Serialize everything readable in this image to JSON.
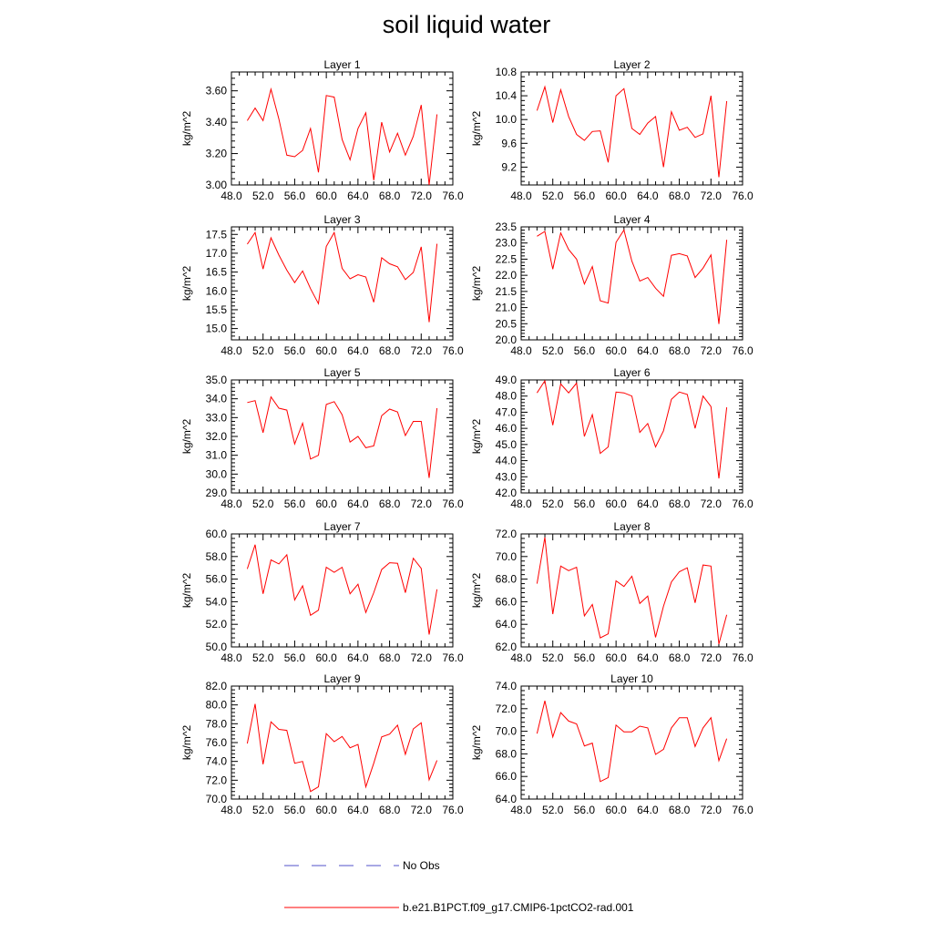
{
  "title": "soil liquid water",
  "legend": [
    {
      "label": "No Obs",
      "color": "#5050c8",
      "style": "dashed"
    },
    {
      "label": "b.e21.B1PCT.f09_g17.CMIP6-1pctCO2-rad.001",
      "color": "#ff0000",
      "style": "solid"
    }
  ],
  "chart_data": [
    {
      "type": "line",
      "title": "Layer 1",
      "ylabel": "kg/m^2",
      "xlim": [
        48,
        76
      ],
      "ylim": [
        3.0,
        3.72
      ],
      "xticks": [
        "48.0",
        "52.0",
        "56.0",
        "60.0",
        "64.0",
        "68.0",
        "72.0",
        "76.0"
      ],
      "yticks": [
        {
          "v": 3.0,
          "label": "3.00"
        },
        {
          "v": 3.2,
          "label": "3.20"
        },
        {
          "v": 3.4,
          "label": "3.40"
        },
        {
          "v": 3.6,
          "label": "3.60"
        }
      ],
      "x": [
        50,
        51,
        52,
        53,
        54,
        55,
        56,
        57,
        58,
        59,
        60,
        61,
        62,
        63,
        64,
        65,
        66,
        67,
        68,
        69,
        70,
        71,
        72,
        73,
        74
      ],
      "series": [
        {
          "values": [
            3.41,
            3.49,
            3.41,
            3.61,
            3.42,
            3.19,
            3.18,
            3.22,
            3.36,
            3.08,
            3.57,
            3.56,
            3.29,
            3.16,
            3.36,
            3.46,
            3.03,
            3.4,
            3.21,
            3.33,
            3.19,
            3.31,
            3.51,
            3.0,
            3.45
          ]
        }
      ]
    },
    {
      "type": "line",
      "title": "Layer 2",
      "ylabel": "kg/m^2",
      "xlim": [
        48,
        76
      ],
      "ylim": [
        8.9,
        10.8
      ],
      "xticks": [
        "48.0",
        "52.0",
        "56.0",
        "60.0",
        "64.0",
        "68.0",
        "72.0",
        "76.0"
      ],
      "yticks": [
        {
          "v": 9.2,
          "label": "9.2"
        },
        {
          "v": 9.6,
          "label": "9.6"
        },
        {
          "v": 10.0,
          "label": "10.0"
        },
        {
          "v": 10.4,
          "label": "10.4"
        },
        {
          "v": 10.8,
          "label": "10.8"
        }
      ],
      "x": [
        50,
        51,
        52,
        53,
        54,
        55,
        56,
        57,
        58,
        59,
        60,
        61,
        62,
        63,
        64,
        65,
        66,
        67,
        68,
        69,
        70,
        71,
        72,
        73,
        74
      ],
      "series": [
        {
          "values": [
            10.15,
            10.55,
            9.95,
            10.5,
            10.05,
            9.75,
            9.65,
            9.8,
            9.81,
            9.28,
            10.4,
            10.52,
            9.85,
            9.75,
            9.94,
            10.05,
            9.2,
            10.13,
            9.82,
            9.87,
            9.7,
            9.76,
            10.4,
            9.03,
            10.31
          ]
        }
      ]
    },
    {
      "type": "line",
      "title": "Layer 3",
      "ylabel": "kg/m^2",
      "xlim": [
        48,
        76
      ],
      "ylim": [
        14.7,
        17.7
      ],
      "xticks": [
        "48.0",
        "52.0",
        "56.0",
        "60.0",
        "64.0",
        "68.0",
        "72.0",
        "76.0"
      ],
      "yticks": [
        {
          "v": 15.0,
          "label": "15.0"
        },
        {
          "v": 15.5,
          "label": "15.5"
        },
        {
          "v": 16.0,
          "label": "16.0"
        },
        {
          "v": 16.5,
          "label": "16.5"
        },
        {
          "v": 17.0,
          "label": "17.0"
        },
        {
          "v": 17.5,
          "label": "17.5"
        }
      ],
      "x": [
        50,
        51,
        52,
        53,
        54,
        55,
        56,
        57,
        58,
        59,
        60,
        61,
        62,
        63,
        64,
        65,
        66,
        67,
        68,
        69,
        70,
        71,
        72,
        73,
        74
      ],
      "series": [
        {
          "values": [
            17.24,
            17.55,
            16.58,
            17.41,
            16.95,
            16.55,
            16.22,
            16.53,
            16.06,
            15.66,
            17.18,
            17.55,
            16.6,
            16.32,
            16.43,
            16.37,
            15.7,
            16.88,
            16.72,
            16.64,
            16.3,
            16.49,
            17.17,
            15.17,
            17.25
          ]
        }
      ]
    },
    {
      "type": "line",
      "title": "Layer 4",
      "ylabel": "kg/m^2",
      "xlim": [
        48,
        76
      ],
      "ylim": [
        20.0,
        23.5
      ],
      "xticks": [
        "48.0",
        "52.0",
        "56.0",
        "60.0",
        "64.0",
        "68.0",
        "72.0",
        "76.0"
      ],
      "yticks": [
        {
          "v": 20.0,
          "label": "20.0"
        },
        {
          "v": 20.5,
          "label": "20.5"
        },
        {
          "v": 21.0,
          "label": "21.0"
        },
        {
          "v": 21.5,
          "label": "21.5"
        },
        {
          "v": 22.0,
          "label": "22.0"
        },
        {
          "v": 22.5,
          "label": "22.5"
        },
        {
          "v": 23.0,
          "label": "23.0"
        },
        {
          "v": 23.5,
          "label": "23.5"
        }
      ],
      "x": [
        50,
        51,
        52,
        53,
        54,
        55,
        56,
        57,
        58,
        59,
        60,
        61,
        62,
        63,
        64,
        65,
        66,
        67,
        68,
        69,
        70,
        71,
        72,
        73,
        74
      ],
      "series": [
        {
          "values": [
            23.21,
            23.36,
            22.19,
            23.31,
            22.8,
            22.5,
            21.73,
            22.27,
            21.21,
            21.14,
            23.02,
            23.4,
            22.44,
            21.82,
            21.93,
            21.6,
            21.35,
            22.62,
            22.67,
            22.6,
            21.93,
            22.22,
            22.63,
            20.49,
            23.1
          ]
        }
      ]
    },
    {
      "type": "line",
      "title": "Layer 5",
      "ylabel": "kg/m^2",
      "xlim": [
        48,
        76
      ],
      "ylim": [
        29.0,
        35.0
      ],
      "xticks": [
        "48.0",
        "52.0",
        "56.0",
        "60.0",
        "64.0",
        "68.0",
        "72.0",
        "76.0"
      ],
      "yticks": [
        {
          "v": 29.0,
          "label": "29.0"
        },
        {
          "v": 30.0,
          "label": "30.0"
        },
        {
          "v": 31.0,
          "label": "31.0"
        },
        {
          "v": 32.0,
          "label": "32.0"
        },
        {
          "v": 33.0,
          "label": "33.0"
        },
        {
          "v": 34.0,
          "label": "34.0"
        },
        {
          "v": 35.0,
          "label": "35.0"
        }
      ],
      "x": [
        50,
        51,
        52,
        53,
        54,
        55,
        56,
        57,
        58,
        59,
        60,
        61,
        62,
        63,
        64,
        65,
        66,
        67,
        68,
        69,
        70,
        71,
        72,
        73,
        74
      ],
      "series": [
        {
          "values": [
            33.8,
            33.9,
            32.2,
            34.1,
            33.5,
            33.4,
            31.6,
            32.7,
            30.8,
            31.0,
            33.7,
            33.85,
            33.15,
            31.7,
            32.0,
            31.4,
            31.5,
            33.1,
            33.45,
            33.3,
            32.05,
            32.8,
            32.8,
            29.8,
            33.5
          ]
        }
      ]
    },
    {
      "type": "line",
      "title": "Layer 6",
      "ylabel": "kg/m^2",
      "xlim": [
        48,
        76
      ],
      "ylim": [
        42.0,
        49.0
      ],
      "xticks": [
        "48.0",
        "52.0",
        "56.0",
        "60.0",
        "64.0",
        "68.0",
        "72.0",
        "76.0"
      ],
      "yticks": [
        {
          "v": 42.0,
          "label": "42.0"
        },
        {
          "v": 43.0,
          "label": "43.0"
        },
        {
          "v": 44.0,
          "label": "44.0"
        },
        {
          "v": 45.0,
          "label": "45.0"
        },
        {
          "v": 46.0,
          "label": "46.0"
        },
        {
          "v": 47.0,
          "label": "47.0"
        },
        {
          "v": 48.0,
          "label": "48.0"
        },
        {
          "v": 49.0,
          "label": "49.0"
        }
      ],
      "x": [
        50,
        51,
        52,
        53,
        54,
        55,
        56,
        57,
        58,
        59,
        60,
        61,
        62,
        63,
        64,
        65,
        66,
        67,
        68,
        69,
        70,
        71,
        72,
        73,
        74
      ],
      "series": [
        {
          "values": [
            48.2,
            48.95,
            46.2,
            48.75,
            48.2,
            48.8,
            45.5,
            46.85,
            44.45,
            44.85,
            48.25,
            48.2,
            48.0,
            45.75,
            46.3,
            44.85,
            45.85,
            47.8,
            48.25,
            48.1,
            46.0,
            48.0,
            47.35,
            42.9,
            47.3
          ]
        }
      ]
    },
    {
      "type": "line",
      "title": "Layer 7",
      "ylabel": "kg/m^2",
      "xlim": [
        48,
        76
      ],
      "ylim": [
        50.0,
        60.0
      ],
      "xticks": [
        "48.0",
        "52.0",
        "56.0",
        "60.0",
        "64.0",
        "68.0",
        "72.0",
        "76.0"
      ],
      "yticks": [
        {
          "v": 50.0,
          "label": "50.0"
        },
        {
          "v": 52.0,
          "label": "52.0"
        },
        {
          "v": 54.0,
          "label": "54.0"
        },
        {
          "v": 56.0,
          "label": "56.0"
        },
        {
          "v": 58.0,
          "label": "58.0"
        },
        {
          "v": 60.0,
          "label": "60.0"
        }
      ],
      "x": [
        50,
        51,
        52,
        53,
        54,
        55,
        56,
        57,
        58,
        59,
        60,
        61,
        62,
        63,
        64,
        65,
        66,
        67,
        68,
        69,
        70,
        71,
        72,
        73,
        74
      ],
      "series": [
        {
          "values": [
            56.9,
            59.05,
            54.7,
            57.7,
            57.35,
            58.15,
            54.15,
            55.4,
            52.8,
            53.25,
            57.05,
            56.6,
            57.05,
            54.7,
            55.55,
            53.05,
            54.8,
            56.85,
            57.45,
            57.4,
            54.8,
            57.85,
            56.95,
            51.1,
            55.1
          ]
        }
      ]
    },
    {
      "type": "line",
      "title": "Layer 8",
      "ylabel": "kg/m^2",
      "xlim": [
        48,
        76
      ],
      "ylim": [
        62.0,
        72.0
      ],
      "xticks": [
        "48.0",
        "52.0",
        "56.0",
        "60.0",
        "64.0",
        "68.0",
        "72.0",
        "76.0"
      ],
      "yticks": [
        {
          "v": 62.0,
          "label": "62.0"
        },
        {
          "v": 64.0,
          "label": "64.0"
        },
        {
          "v": 66.0,
          "label": "66.0"
        },
        {
          "v": 68.0,
          "label": "68.0"
        },
        {
          "v": 70.0,
          "label": "70.0"
        },
        {
          "v": 72.0,
          "label": "72.0"
        }
      ],
      "x": [
        50,
        51,
        52,
        53,
        54,
        55,
        56,
        57,
        58,
        59,
        60,
        61,
        62,
        63,
        64,
        65,
        66,
        67,
        68,
        69,
        70,
        71,
        72,
        73,
        74
      ],
      "series": [
        {
          "values": [
            67.6,
            71.7,
            64.9,
            69.15,
            68.75,
            69.05,
            64.75,
            65.75,
            62.8,
            63.15,
            67.85,
            67.35,
            68.25,
            65.85,
            66.5,
            62.85,
            65.6,
            67.75,
            68.65,
            69.0,
            65.9,
            69.25,
            69.15,
            62.25,
            64.85
          ]
        }
      ]
    },
    {
      "type": "line",
      "title": "Layer 9",
      "ylabel": "kg/m^2",
      "xlim": [
        48,
        76
      ],
      "ylim": [
        70.0,
        82.0
      ],
      "xticks": [
        "48.0",
        "52.0",
        "56.0",
        "60.0",
        "64.0",
        "68.0",
        "72.0",
        "76.0"
      ],
      "yticks": [
        {
          "v": 70.0,
          "label": "70.0"
        },
        {
          "v": 72.0,
          "label": "72.0"
        },
        {
          "v": 74.0,
          "label": "74.0"
        },
        {
          "v": 76.0,
          "label": "76.0"
        },
        {
          "v": 78.0,
          "label": "78.0"
        },
        {
          "v": 80.0,
          "label": "80.0"
        },
        {
          "v": 82.0,
          "label": "82.0"
        }
      ],
      "x": [
        50,
        51,
        52,
        53,
        54,
        55,
        56,
        57,
        58,
        59,
        60,
        61,
        62,
        63,
        64,
        65,
        66,
        67,
        68,
        69,
        70,
        71,
        72,
        73,
        74
      ],
      "series": [
        {
          "values": [
            75.9,
            80.1,
            73.7,
            78.2,
            77.4,
            77.3,
            73.8,
            74.0,
            70.8,
            71.3,
            76.95,
            76.1,
            76.65,
            75.45,
            75.8,
            71.3,
            73.8,
            76.6,
            76.9,
            77.85,
            74.75,
            77.45,
            78.1,
            72.05,
            74.1
          ]
        }
      ]
    },
    {
      "type": "line",
      "title": "Layer 10",
      "ylabel": "kg/m^2",
      "xlim": [
        48,
        76
      ],
      "ylim": [
        64.0,
        74.0
      ],
      "xticks": [
        "48.0",
        "52.0",
        "56.0",
        "60.0",
        "64.0",
        "68.0",
        "72.0",
        "76.0"
      ],
      "yticks": [
        {
          "v": 64.0,
          "label": "64.0"
        },
        {
          "v": 66.0,
          "label": "66.0"
        },
        {
          "v": 68.0,
          "label": "68.0"
        },
        {
          "v": 70.0,
          "label": "70.0"
        },
        {
          "v": 72.0,
          "label": "72.0"
        },
        {
          "v": 74.0,
          "label": "74.0"
        }
      ],
      "x": [
        50,
        51,
        52,
        53,
        54,
        55,
        56,
        57,
        58,
        59,
        60,
        61,
        62,
        63,
        64,
        65,
        66,
        67,
        68,
        69,
        70,
        71,
        72,
        73,
        74
      ],
      "series": [
        {
          "values": [
            69.8,
            72.7,
            69.5,
            71.65,
            70.9,
            70.65,
            68.7,
            68.95,
            65.55,
            65.9,
            70.55,
            69.95,
            69.95,
            70.45,
            70.3,
            67.95,
            68.4,
            70.3,
            71.2,
            71.2,
            68.65,
            70.3,
            71.2,
            67.4,
            69.35
          ]
        }
      ]
    }
  ]
}
